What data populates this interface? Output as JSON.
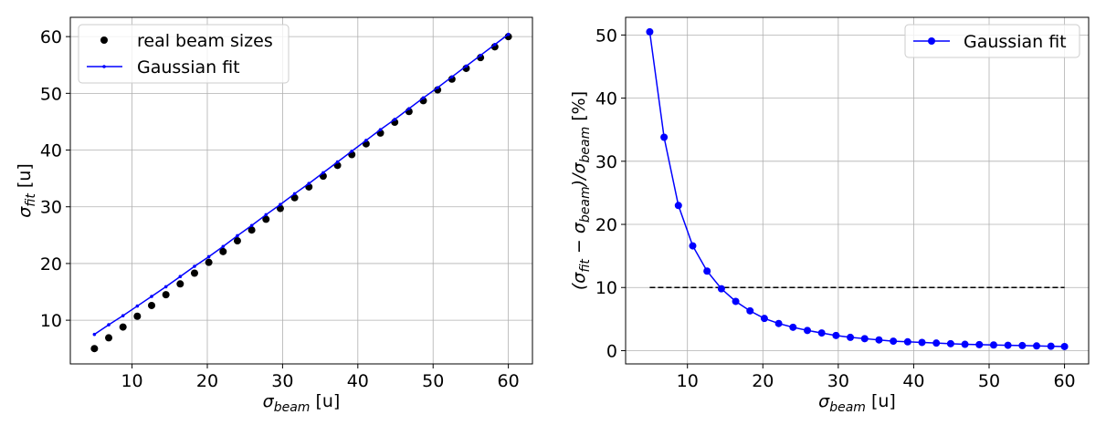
{
  "chart_data": [
    {
      "type": "scatter",
      "xlabel": {
        "main": "σ",
        "sub": "beam",
        "unit": " [u]"
      },
      "ylabel": {
        "main": "σ",
        "sub": "fit",
        "unit": " [u]"
      },
      "xlim": [
        1.8,
        63.2
      ],
      "ylim": [
        2.3,
        63.4
      ],
      "xticks": [
        10,
        20,
        30,
        40,
        50,
        60
      ],
      "yticks": [
        10,
        20,
        30,
        40,
        50,
        60
      ],
      "grid": true,
      "legend_position": "top-left",
      "series": [
        {
          "name": "real beam sizes",
          "style": "markers",
          "color": "#000000",
          "x": [
            5.0,
            6.9,
            8.8,
            10.7,
            12.6,
            14.5,
            16.4,
            18.3,
            20.2,
            22.1,
            24.0,
            25.9,
            27.8,
            29.7,
            31.6,
            33.5,
            35.4,
            37.3,
            39.2,
            41.1,
            43.0,
            44.9,
            46.8,
            48.7,
            50.6,
            52.5,
            54.4,
            56.3,
            58.2,
            60.0
          ],
          "y": [
            5.0,
            6.9,
            8.8,
            10.7,
            12.6,
            14.5,
            16.4,
            18.3,
            20.2,
            22.1,
            24.0,
            25.9,
            27.8,
            29.7,
            31.6,
            33.5,
            35.4,
            37.3,
            39.2,
            41.1,
            43.0,
            44.9,
            46.8,
            48.7,
            50.6,
            52.5,
            54.4,
            56.3,
            58.2,
            60.0
          ]
        },
        {
          "name": "Gaussian fit",
          "style": "line-markers",
          "color": "#0000ff",
          "x": [
            5.0,
            6.9,
            8.8,
            10.7,
            12.6,
            14.5,
            16.4,
            18.3,
            20.2,
            22.1,
            24.0,
            25.9,
            27.8,
            29.7,
            31.6,
            33.5,
            35.4,
            37.3,
            39.2,
            41.1,
            43.0,
            44.9,
            46.8,
            48.7,
            50.6,
            52.5,
            54.4,
            56.3,
            58.2,
            60.0
          ],
          "y": [
            7.5,
            9.2,
            10.8,
            12.5,
            14.2,
            15.9,
            17.7,
            19.5,
            21.2,
            23.0,
            24.9,
            26.7,
            28.6,
            30.4,
            32.3,
            34.1,
            36.0,
            37.9,
            39.8,
            41.7,
            43.6,
            45.4,
            47.3,
            49.2,
            51.0,
            52.9,
            54.8,
            56.7,
            58.6,
            60.4
          ]
        }
      ]
    },
    {
      "type": "line",
      "xlabel": {
        "main": "σ",
        "sub": "beam",
        "unit": " [u]"
      },
      "ylabel": {
        "open": "(σ",
        "sub1": "fit",
        "mid": " − σ",
        "sub2": "beam",
        "close": ")/σ",
        "sub3": "beam",
        "unit": " [%]"
      },
      "xlim": [
        1.8,
        63.2
      ],
      "ylim": [
        -2.1,
        52.8
      ],
      "xticks": [
        10,
        20,
        30,
        40,
        50,
        60
      ],
      "yticks": [
        0,
        10,
        20,
        30,
        40,
        50
      ],
      "grid": true,
      "legend_position": "top-right",
      "reference_line": {
        "y": 10,
        "x_range": [
          5,
          60
        ],
        "style": "dashed",
        "color": "#000000"
      },
      "series": [
        {
          "name": "Gaussian fit",
          "style": "line-markers",
          "color": "#0000ff",
          "x": [
            5.0,
            6.9,
            8.8,
            10.7,
            12.6,
            14.5,
            16.4,
            18.3,
            20.2,
            22.1,
            24.0,
            25.9,
            27.8,
            29.7,
            31.6,
            33.5,
            35.4,
            37.3,
            39.2,
            41.1,
            43.0,
            44.9,
            46.8,
            48.7,
            50.6,
            52.5,
            54.4,
            56.3,
            58.2,
            60.0
          ],
          "y": [
            50.5,
            33.8,
            23.0,
            16.6,
            12.6,
            9.8,
            7.8,
            6.3,
            5.1,
            4.3,
            3.7,
            3.2,
            2.8,
            2.4,
            2.1,
            1.9,
            1.7,
            1.5,
            1.4,
            1.3,
            1.2,
            1.1,
            1.0,
            0.95,
            0.9,
            0.85,
            0.8,
            0.75,
            0.7,
            0.65
          ]
        }
      ]
    }
  ]
}
